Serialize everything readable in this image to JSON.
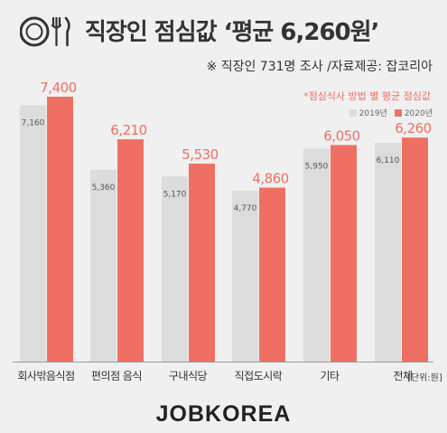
{
  "header": {
    "title": "직장인 점심값 ‘평균 6,260원’",
    "subtitle": "※ 직장인 731명 조사 /자료제공: 잡코리아",
    "note": "*점심식사 방법 별 평균 점심값",
    "icon": "plate-fork-knife-icon"
  },
  "chart_data": {
    "type": "bar",
    "categories": [
      "회사밖음식점",
      "편의점 음식",
      "구내식당",
      "직접도시락",
      "기타",
      "전체"
    ],
    "series": [
      {
        "name": "2019년",
        "values": [
          7160,
          5360,
          5170,
          4770,
          5950,
          6110
        ],
        "labels": [
          "7,160",
          "5,360",
          "5,170",
          "4,770",
          "5,950",
          "6,110"
        ],
        "color": "#dcdcdc"
      },
      {
        "name": "2020년",
        "values": [
          7400,
          6210,
          5530,
          4860,
          6050,
          6260
        ],
        "labels": [
          "7,400",
          "6,210",
          "5,530",
          "4,860",
          "6,050",
          "6,260"
        ],
        "color": "#ef7063"
      }
    ],
    "title": "직장인 점심값 ‘평균 6,260원’",
    "unit_label": "[단위:원]",
    "grid": false,
    "legend_position": "top-right"
  },
  "footer": {
    "logo": "JOBKOREA"
  },
  "colors": {
    "background": "#f0f0f0",
    "bar_2019": "#dcdcdc",
    "bar_2020": "#ef7063",
    "accent_text": "#ef7063",
    "text": "#333333"
  }
}
